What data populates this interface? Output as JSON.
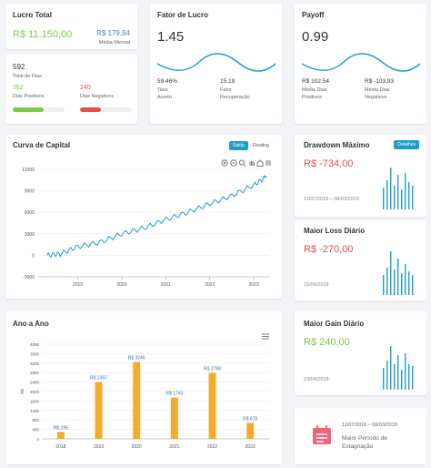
{
  "lucro": {
    "title": "Lucro Total",
    "value": "R$ 11.150,00",
    "monthly_value": "R$ 179,84",
    "monthly_label": "Média Mensal"
  },
  "days": {
    "total": "592",
    "total_label": "Total de Dias",
    "positive": "352",
    "positive_label": "Dias Positivos",
    "negative": "240",
    "negative_label": "Dias Negativos",
    "positive_fraction": 0.59
  },
  "fator": {
    "title": "Fator de Lucro",
    "value": "1.45",
    "acc_value": "59.46%",
    "acc_label_1": "Taxa",
    "acc_label_2": "Acerto",
    "rec_value": "15.19",
    "rec_label_1": "Fator",
    "rec_label_2": "Recuperação"
  },
  "payoff": {
    "title": "Payoff",
    "value": "0.99",
    "pos_value": "R$ 102,54",
    "pos_label_1": "Média Dias",
    "pos_label_2": "Positivos",
    "neg_value": "R$ -103,93",
    "neg_label_1": "Média Dias",
    "neg_label_2": "Negativos"
  },
  "curva": {
    "title": "Curva de Capital",
    "toggle_active": "Saldo",
    "toggle_inactive": "Floating",
    "y_ticks": [
      "12000",
      "9000",
      "6000",
      "3000",
      "0",
      "-3000"
    ],
    "x_ticks": [
      "2019",
      "2020",
      "2021",
      "2022",
      "2023"
    ]
  },
  "drawdown": {
    "title": "Drawdown Máximo",
    "button": "Detalhes",
    "value": "R$ -734,00",
    "date": "11/07/2018 – 08/03/2019"
  },
  "maior_loss": {
    "title": "Maior Loss Diário",
    "value": "R$ -270,00",
    "date": "15/06/2018"
  },
  "maior_gain": {
    "title": "Maior Gain Diário",
    "value": "R$ 240,00",
    "date": "23/04/2018"
  },
  "estagnacao": {
    "date": "11/07/2018 – 08/03/2019",
    "label_1": "Maior Período de",
    "label_2": "Estagnação"
  },
  "ano": {
    "title": "Ano a Ano",
    "y_label": "R$"
  },
  "chart_data": [
    {
      "type": "line",
      "title": "Curva de Capital",
      "x": [
        2018.3,
        2018.6,
        2019.0,
        2019.5,
        2020.0,
        2020.5,
        2021.0,
        2021.5,
        2022.0,
        2022.5,
        2023.0,
        2023.3
      ],
      "y": [
        0,
        200,
        1200,
        1800,
        3000,
        3800,
        5000,
        6000,
        7200,
        8300,
        9800,
        11000
      ],
      "ylim": [
        -3000,
        12000
      ]
    },
    {
      "type": "bar",
      "title": "Ano a Ano",
      "categories": [
        "2018",
        "2019",
        "2020",
        "2021",
        "2022",
        "2023"
      ],
      "values": [
        295,
        2397,
        3246,
        1743,
        2788,
        678
      ],
      "labels": [
        "R$ 295",
        "R$ 2397",
        "R$ 3246",
        "R$ 1743",
        "R$ 2788",
        "R$ 678"
      ],
      "y_ticks": [
        "4000",
        "3600",
        "3200",
        "2800",
        "2400",
        "2000",
        "1600",
        "1200",
        "800",
        "400",
        "0"
      ],
      "ylim": [
        0,
        4000
      ],
      "color": "#f5ac2d"
    }
  ]
}
